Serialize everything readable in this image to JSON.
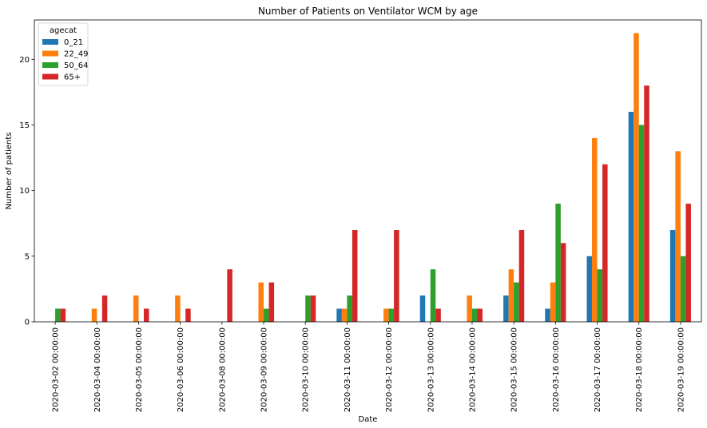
{
  "chart_data": {
    "type": "bar",
    "title": "Number of Patients on Ventilator WCM by age",
    "xlabel": "Date",
    "ylabel": "Number of patients",
    "ylim": [
      0,
      23
    ],
    "yticks": [
      0,
      5,
      10,
      15,
      20
    ],
    "grid": false,
    "legend": {
      "title": "agecat",
      "placement": "top-left"
    },
    "categories": [
      "2020-03-02 00:00:00",
      "2020-03-04 00:00:00",
      "2020-03-05 00:00:00",
      "2020-03-06 00:00:00",
      "2020-03-08 00:00:00",
      "2020-03-09 00:00:00",
      "2020-03-10 00:00:00",
      "2020-03-11 00:00:00",
      "2020-03-12 00:00:00",
      "2020-03-13 00:00:00",
      "2020-03-14 00:00:00",
      "2020-03-15 00:00:00",
      "2020-03-16 00:00:00",
      "2020-03-17 00:00:00",
      "2020-03-18 00:00:00",
      "2020-03-19 00:00:00"
    ],
    "series": [
      {
        "name": "0_21",
        "color": "#1f77b4",
        "values": [
          0,
          0,
          0,
          0,
          0,
          0,
          0,
          1,
          0,
          2,
          0,
          2,
          1,
          5,
          16,
          7
        ]
      },
      {
        "name": "22_49",
        "color": "#ff7f0e",
        "values": [
          0,
          1,
          2,
          2,
          0,
          3,
          0,
          1,
          1,
          0,
          2,
          4,
          3,
          14,
          22,
          13
        ]
      },
      {
        "name": "50_64",
        "color": "#2ca02c",
        "values": [
          1,
          0,
          0,
          0,
          0,
          1,
          2,
          2,
          1,
          4,
          1,
          3,
          9,
          4,
          15,
          5
        ]
      },
      {
        "name": "65+",
        "color": "#d62728",
        "values": [
          1,
          2,
          1,
          1,
          4,
          3,
          2,
          7,
          7,
          1,
          1,
          7,
          6,
          12,
          18,
          9
        ]
      }
    ]
  }
}
